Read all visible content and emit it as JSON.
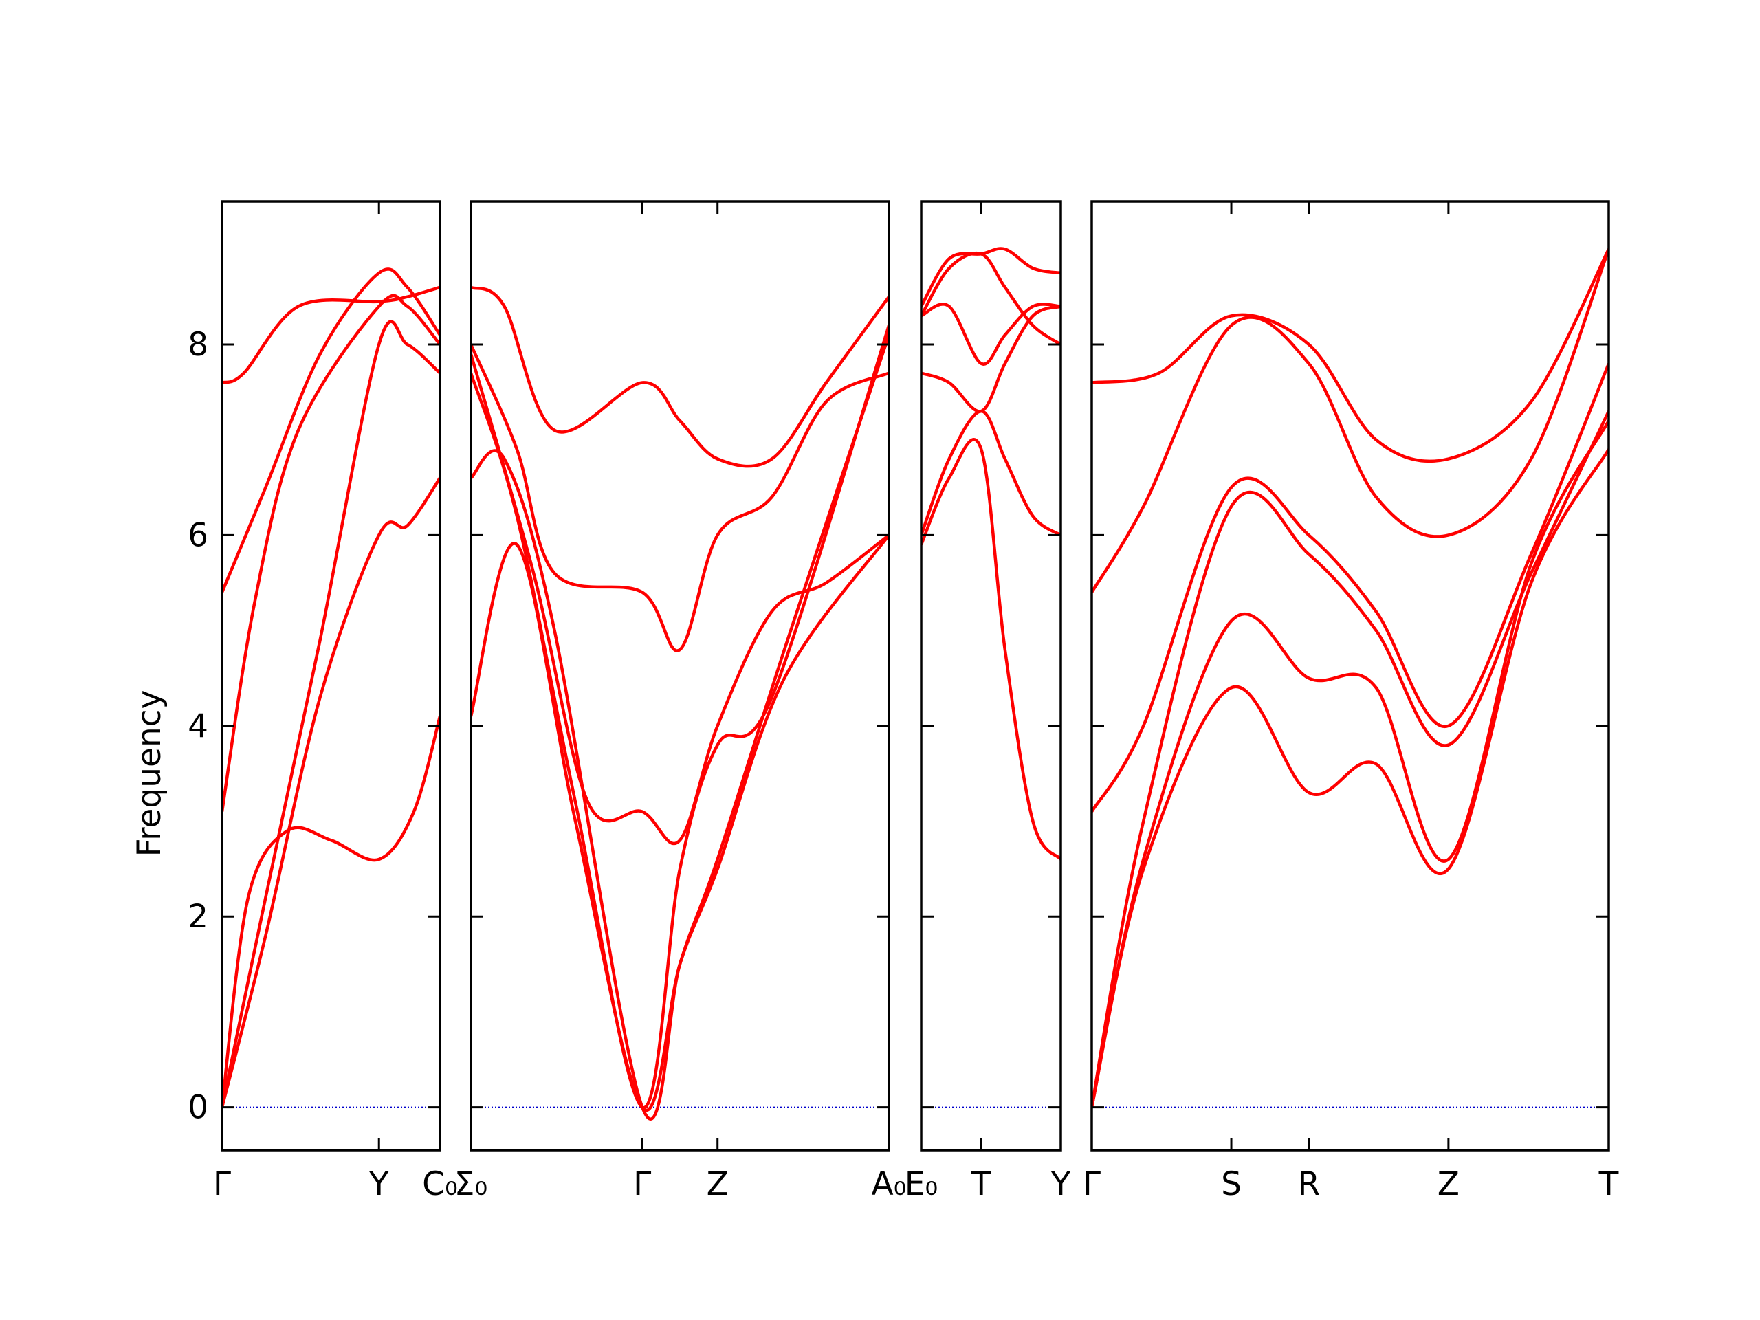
{
  "chart_data": {
    "type": "line",
    "ylabel": "Frequency",
    "ylim": [
      -0.45,
      9.5
    ],
    "yticks": [
      0,
      2,
      4,
      6,
      8
    ],
    "ytick_labels": [
      "0",
      "2",
      "4",
      "6",
      "8"
    ],
    "line_color": "#ff0000",
    "zero_line_color": "#0000cc",
    "segments": [
      {
        "path_labels": [
          "Γ",
          "Y",
          "C₀"
        ],
        "label_positions": [
          0,
          0.72,
          1.0
        ],
        "bands": [
          {
            "values": [
              [
                0,
                0
              ],
              [
                0.2,
                1.8
              ],
              [
                0.45,
                4.3
              ],
              [
                0.72,
                6.0
              ],
              [
                0.85,
                6.1
              ],
              [
                1.0,
                6.6
              ]
            ]
          },
          {
            "values": [
              [
                0,
                0
              ],
              [
                0.2,
                2.2
              ],
              [
                0.45,
                4.9
              ],
              [
                0.72,
                8.0
              ],
              [
                0.85,
                8.0
              ],
              [
                1.0,
                7.7
              ]
            ]
          },
          {
            "values": [
              [
                0,
                0
              ],
              [
                0.12,
                2.2
              ],
              [
                0.3,
                2.9
              ],
              [
                0.5,
                2.8
              ],
              [
                0.72,
                2.6
              ],
              [
                0.88,
                3.1
              ],
              [
                1.0,
                4.1
              ]
            ]
          },
          {
            "values": [
              [
                0,
                3.1
              ],
              [
                0.15,
                5.3
              ],
              [
                0.35,
                7.1
              ],
              [
                0.72,
                8.4
              ],
              [
                0.85,
                8.4
              ],
              [
                1.0,
                8.0
              ]
            ]
          },
          {
            "values": [
              [
                0,
                5.4
              ],
              [
                0.2,
                6.5
              ],
              [
                0.45,
                7.9
              ],
              [
                0.72,
                8.75
              ],
              [
                0.85,
                8.6
              ],
              [
                1.0,
                8.1
              ]
            ]
          },
          {
            "values": [
              [
                0,
                7.6
              ],
              [
                0.1,
                7.7
              ],
              [
                0.35,
                8.4
              ],
              [
                0.72,
                8.45
              ],
              [
                0.85,
                8.5
              ],
              [
                1.0,
                8.6
              ]
            ]
          }
        ]
      },
      {
        "path_labels": [
          "Σ₀",
          "Γ",
          "Z",
          "A₀"
        ],
        "label_positions": [
          0,
          0.41,
          0.59,
          1.0
        ],
        "bands": [
          {
            "values": [
              [
                0,
                4.1
              ],
              [
                0.11,
                5.9
              ],
              [
                0.25,
                3.0
              ],
              [
                0.41,
                0
              ],
              [
                0.5,
                1.5
              ],
              [
                0.59,
                2.5
              ],
              [
                0.75,
                4.5
              ],
              [
                1.0,
                6.0
              ]
            ]
          },
          {
            "values": [
              [
                0,
                6.6
              ],
              [
                0.08,
                6.8
              ],
              [
                0.2,
                5.0
              ],
              [
                0.41,
                0
              ],
              [
                0.5,
                1.5
              ],
              [
                0.59,
                2.6
              ],
              [
                0.75,
                4.8
              ],
              [
                1.0,
                8.1
              ]
            ]
          },
          {
            "values": [
              [
                0,
                7.7
              ],
              [
                0.11,
                6.2
              ],
              [
                0.25,
                3.2
              ],
              [
                0.41,
                0
              ],
              [
                0.5,
                2.5
              ],
              [
                0.59,
                3.8
              ],
              [
                0.72,
                4.3
              ],
              [
                1.0,
                8.2
              ]
            ]
          },
          {
            "values": [
              [
                0,
                7.9
              ],
              [
                0.15,
                5.6
              ],
              [
                0.28,
                3.2
              ],
              [
                0.41,
                3.1
              ],
              [
                0.5,
                2.8
              ],
              [
                0.59,
                4.0
              ],
              [
                0.72,
                5.2
              ],
              [
                0.85,
                5.5
              ],
              [
                1.0,
                6.0
              ]
            ]
          },
          {
            "values": [
              [
                0,
                8.0
              ],
              [
                0.11,
                6.9
              ],
              [
                0.2,
                5.6
              ],
              [
                0.41,
                5.4
              ],
              [
                0.5,
                4.8
              ],
              [
                0.59,
                6.0
              ],
              [
                0.72,
                6.4
              ],
              [
                0.85,
                7.4
              ],
              [
                1.0,
                7.7
              ]
            ]
          },
          {
            "values": [
              [
                0,
                8.6
              ],
              [
                0.08,
                8.4
              ],
              [
                0.2,
                7.1
              ],
              [
                0.41,
                7.6
              ],
              [
                0.5,
                7.2
              ],
              [
                0.59,
                6.8
              ],
              [
                0.72,
                6.8
              ],
              [
                0.85,
                7.6
              ],
              [
                1.0,
                8.5
              ]
            ]
          }
        ]
      },
      {
        "path_labels": [
          "E₀",
          "T",
          "Y"
        ],
        "label_positions": [
          0,
          0.43,
          1.0
        ],
        "bands": [
          {
            "values": [
              [
                0,
                5.9
              ],
              [
                0.2,
                6.6
              ],
              [
                0.43,
                6.9
              ],
              [
                0.6,
                4.8
              ],
              [
                0.8,
                3.0
              ],
              [
                1.0,
                2.6
              ]
            ]
          },
          {
            "values": [
              [
                0,
                6.0
              ],
              [
                0.2,
                6.8
              ],
              [
                0.43,
                7.3
              ],
              [
                0.6,
                6.8
              ],
              [
                0.8,
                6.2
              ],
              [
                1.0,
                6.0
              ]
            ]
          },
          {
            "values": [
              [
                0,
                7.7
              ],
              [
                0.2,
                7.6
              ],
              [
                0.43,
                7.3
              ],
              [
                0.6,
                7.8
              ],
              [
                0.8,
                8.3
              ],
              [
                1.0,
                8.4
              ]
            ]
          },
          {
            "values": [
              [
                0,
                8.3
              ],
              [
                0.2,
                8.8
              ],
              [
                0.43,
                8.95
              ],
              [
                0.6,
                8.6
              ],
              [
                0.8,
                8.2
              ],
              [
                1.0,
                8.0
              ]
            ]
          },
          {
            "values": [
              [
                0,
                8.3
              ],
              [
                0.2,
                8.4
              ],
              [
                0.43,
                7.8
              ],
              [
                0.6,
                8.1
              ],
              [
                0.8,
                8.4
              ],
              [
                1.0,
                8.4
              ]
            ]
          },
          {
            "values": [
              [
                0,
                8.4
              ],
              [
                0.2,
                8.9
              ],
              [
                0.43,
                8.95
              ],
              [
                0.6,
                9.0
              ],
              [
                0.8,
                8.8
              ],
              [
                1.0,
                8.75
              ]
            ]
          }
        ]
      },
      {
        "path_labels": [
          "Γ",
          "S",
          "R",
          "Z",
          "T"
        ],
        "label_positions": [
          0,
          0.27,
          0.42,
          0.69,
          1.0
        ],
        "bands": [
          {
            "values": [
              [
                0,
                0
              ],
              [
                0.1,
                2.5
              ],
              [
                0.27,
                4.4
              ],
              [
                0.42,
                3.3
              ],
              [
                0.55,
                3.6
              ],
              [
                0.69,
                2.5
              ],
              [
                0.85,
                5.5
              ],
              [
                1.0,
                6.9
              ]
            ]
          },
          {
            "values": [
              [
                0,
                0
              ],
              [
                0.1,
                2.6
              ],
              [
                0.27,
                5.1
              ],
              [
                0.42,
                4.5
              ],
              [
                0.55,
                4.4
              ],
              [
                0.69,
                2.6
              ],
              [
                0.85,
                5.7
              ],
              [
                1.0,
                7.2
              ]
            ]
          },
          {
            "values": [
              [
                0,
                0
              ],
              [
                0.1,
                3.0
              ],
              [
                0.27,
                6.3
              ],
              [
                0.42,
                5.8
              ],
              [
                0.55,
                5.0
              ],
              [
                0.69,
                3.8
              ],
              [
                0.85,
                5.6
              ],
              [
                1.0,
                7.3
              ]
            ]
          },
          {
            "values": [
              [
                0,
                3.1
              ],
              [
                0.1,
                4.0
              ],
              [
                0.27,
                6.5
              ],
              [
                0.42,
                6.0
              ],
              [
                0.55,
                5.2
              ],
              [
                0.69,
                4.0
              ],
              [
                0.85,
                5.8
              ],
              [
                1.0,
                7.8
              ]
            ]
          },
          {
            "values": [
              [
                0,
                5.4
              ],
              [
                0.1,
                6.3
              ],
              [
                0.27,
                8.2
              ],
              [
                0.42,
                7.8
              ],
              [
                0.55,
                6.4
              ],
              [
                0.69,
                6.0
              ],
              [
                0.85,
                6.8
              ],
              [
                1.0,
                9.0
              ]
            ]
          },
          {
            "values": [
              [
                0,
                7.6
              ],
              [
                0.13,
                7.7
              ],
              [
                0.27,
                8.3
              ],
              [
                0.42,
                8.0
              ],
              [
                0.55,
                7.0
              ],
              [
                0.69,
                6.8
              ],
              [
                0.85,
                7.4
              ],
              [
                1.0,
                9.0
              ]
            ]
          }
        ]
      }
    ]
  }
}
